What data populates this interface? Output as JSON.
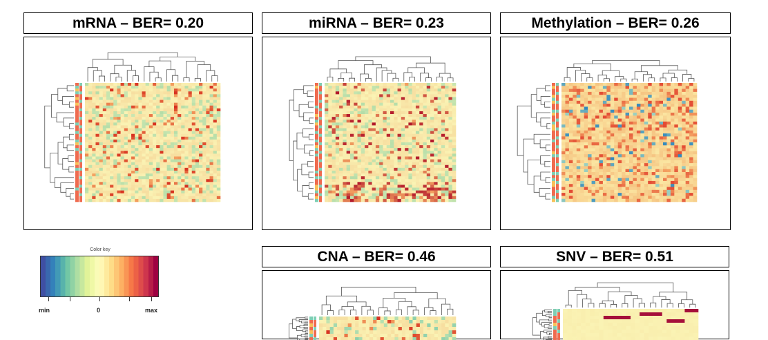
{
  "panels": [
    {
      "id": "mrna",
      "title": "mRNA – BER= 0.20",
      "variant": "mrna",
      "palette_lo": "#9fd3a0",
      "palette_mid": "#faf3b4",
      "palette_hi": "#d7301f",
      "side_colors": [
        "#ef6b4f",
        "#7ecfb4",
        "#f7c25a"
      ]
    },
    {
      "id": "mirna",
      "title": "miRNA – BER= 0.23",
      "variant": "mirna",
      "palette_lo": "#9fd3a0",
      "palette_mid": "#faf3b4",
      "palette_hi": "#b2182b",
      "side_colors": [
        "#ef6b4f",
        "#7ecfb4",
        "#f7c25a"
      ]
    },
    {
      "id": "methylation",
      "title": "Methylation – BER= 0.26",
      "variant": "methylation",
      "palette_lo": "#3288bd",
      "palette_mid": "#fae9a0",
      "palette_hi": "#e34a33",
      "side_colors": [
        "#ef6b4f",
        "#7ecfb4",
        "#f7c25a"
      ]
    },
    {
      "id": "cna",
      "title": "CNA – BER= 0.46",
      "variant": "cna",
      "palette_lo": "#4ab8a8",
      "palette_mid": "#faf3b4",
      "palette_hi": "#d7301f",
      "side_colors": [
        "#ef6b4f",
        "#7ecfb4",
        "#f7c25a"
      ]
    },
    {
      "id": "snv",
      "title": "SNV – BER= 0.51",
      "variant": "snv",
      "palette_lo": "#faf3b4",
      "palette_mid": "#faf3b4",
      "palette_hi": "#a50f3a",
      "side_colors": [
        "#ef6b4f",
        "#7ecfb4",
        "#f7c25a"
      ]
    }
  ],
  "color_key": {
    "title": "Color key",
    "min_label": "min",
    "zero_label": "0",
    "max_label": "max",
    "gradient": [
      "#3f4fa3",
      "#3288bd",
      "#66c2a5",
      "#abdda4",
      "#e6f598",
      "#fffdbf",
      "#fee08b",
      "#fdae61",
      "#f46d43",
      "#d53e4f",
      "#9e0142"
    ]
  }
}
